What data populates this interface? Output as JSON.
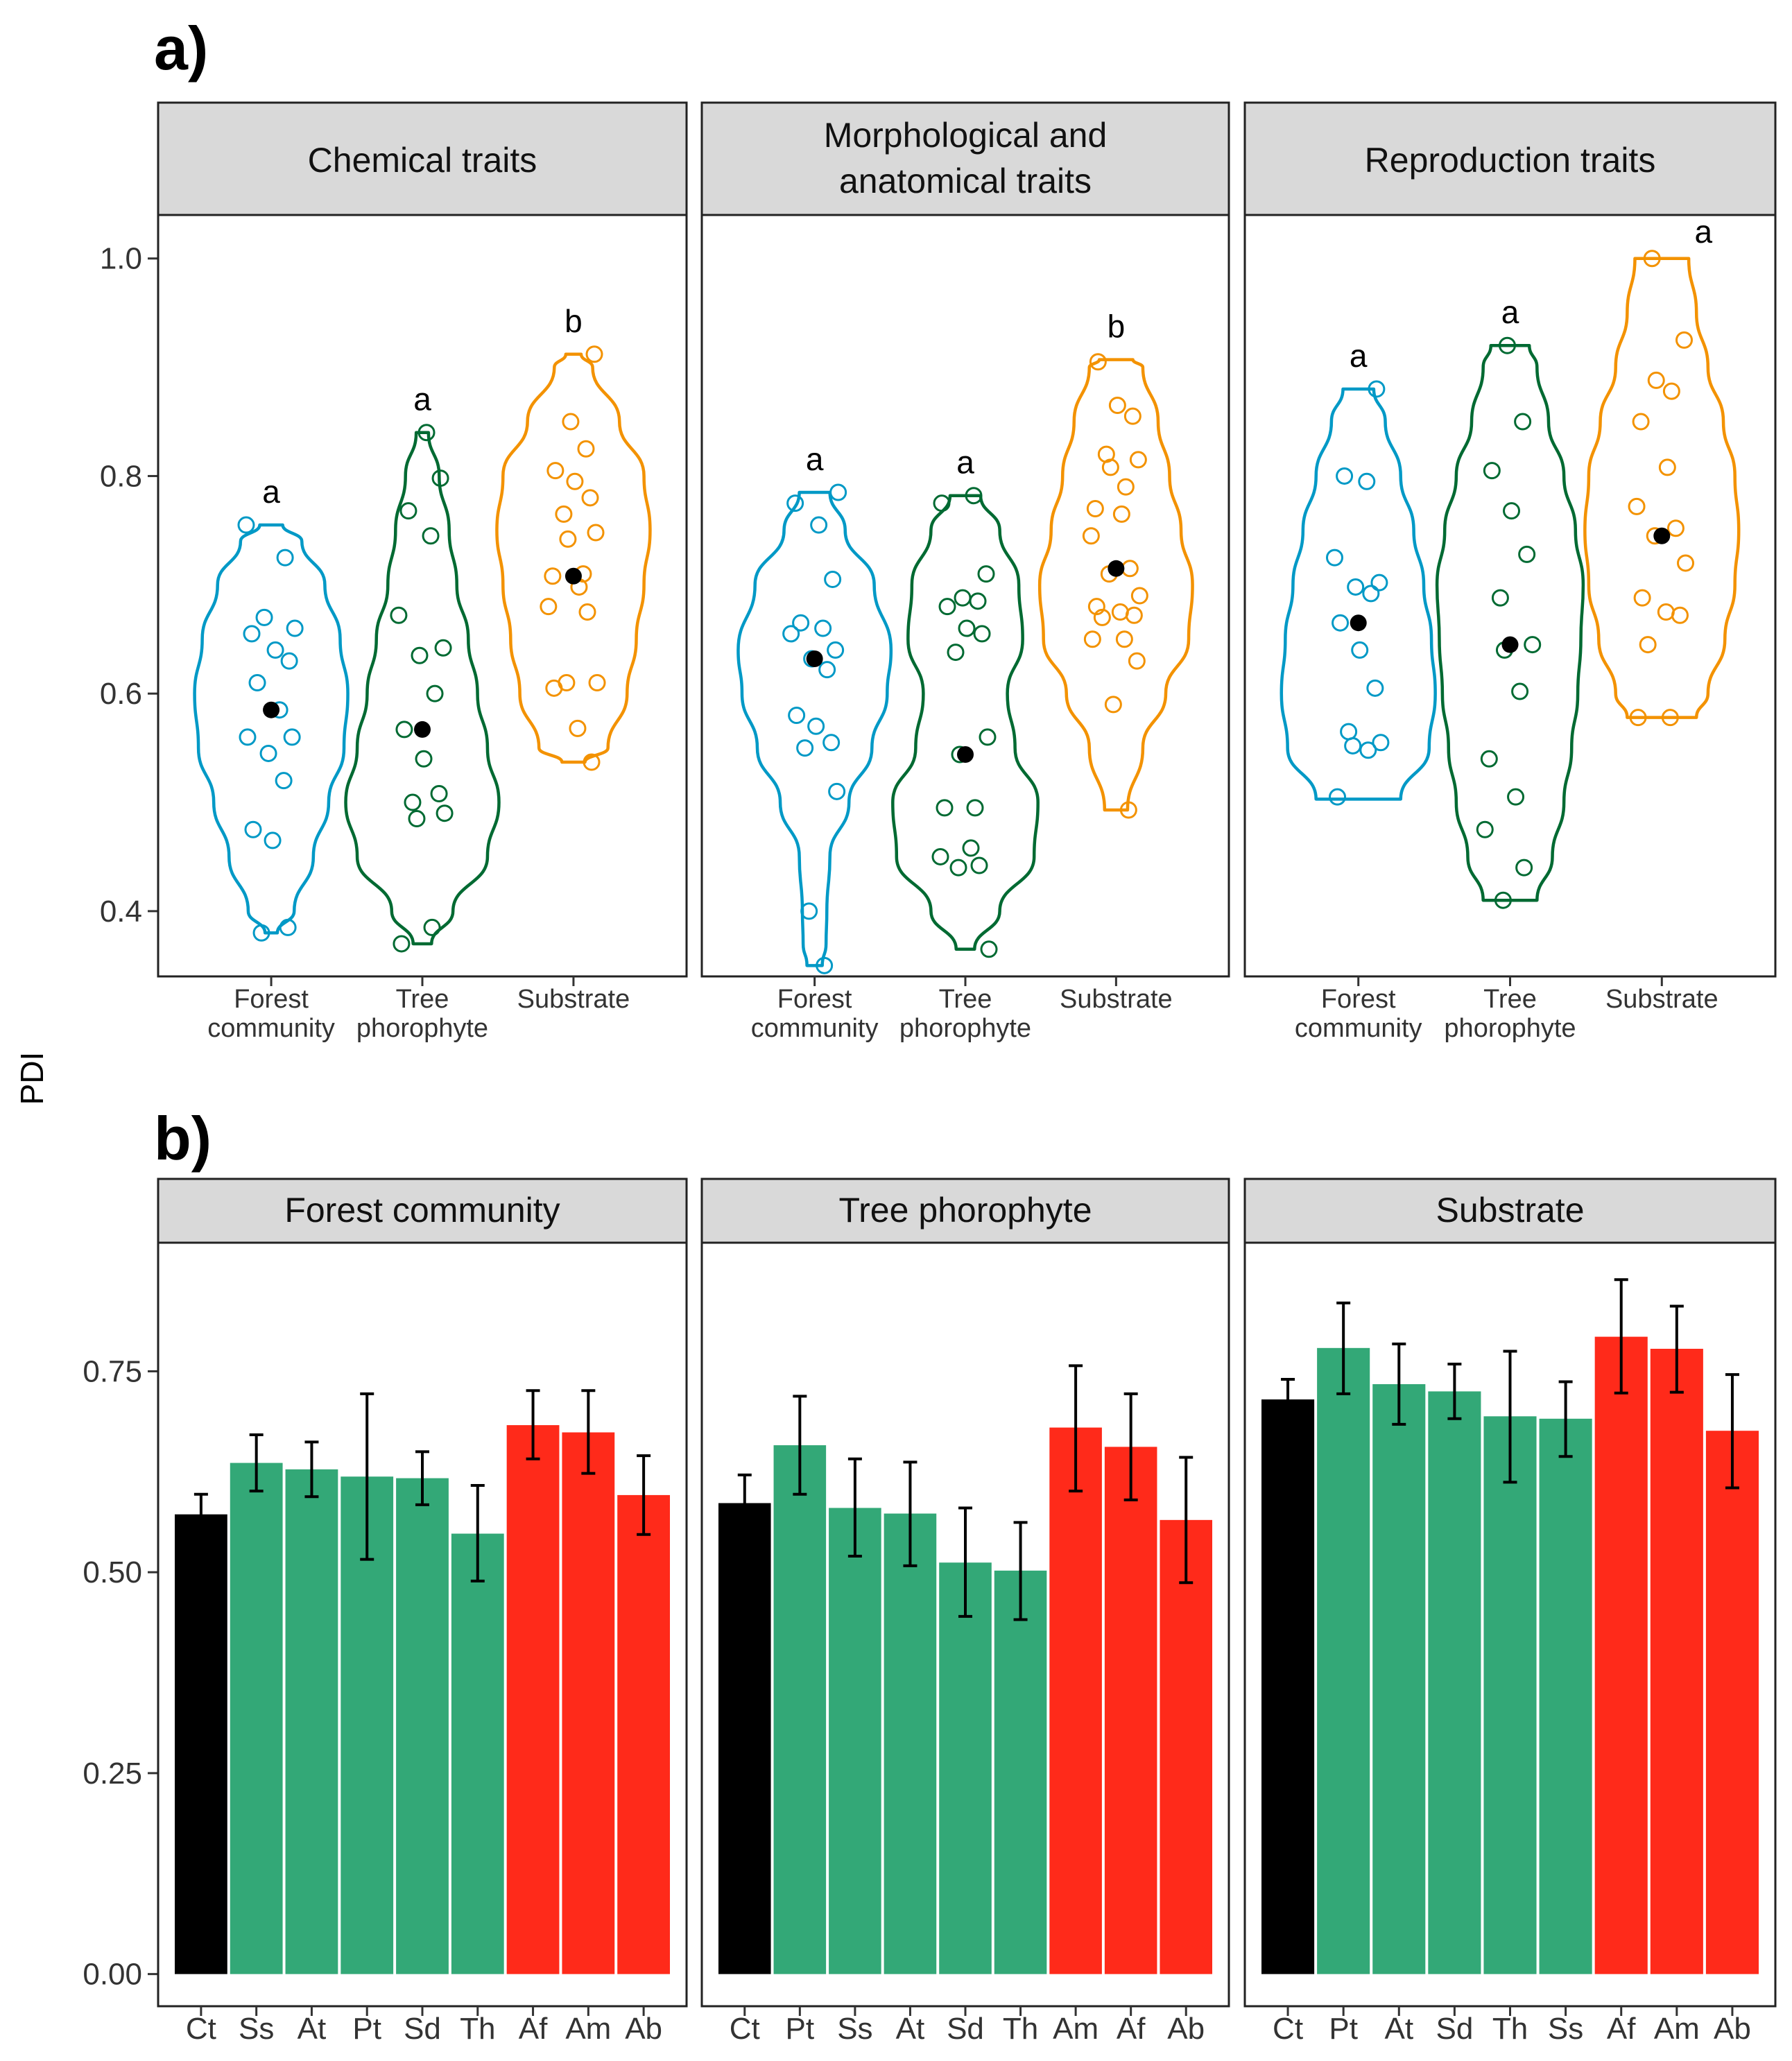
{
  "figure": {
    "ylabel": "PDI",
    "colors": {
      "forest": "#0099C6",
      "tree": "#006A32",
      "substrate": "#F39200",
      "mean_dot": "#000000",
      "strip_fill": "#D9D9D9",
      "bar_control": "#000000",
      "bar_green": "#33A877",
      "bar_red": "#FF2A1A",
      "error_bar": "#000000"
    }
  },
  "chart_data": [
    {
      "panel_label": "a)",
      "type": "violin",
      "ylim": [
        0.34,
        1.04
      ],
      "yticks": [
        0.4,
        0.6,
        0.8,
        1.0
      ],
      "ytick_labels": [
        "0.4",
        "0.6",
        "0.8",
        "1.0"
      ],
      "categories": [
        {
          "key": "forest",
          "lines": [
            "Forest",
            "community"
          ]
        },
        {
          "key": "tree",
          "lines": [
            "Tree",
            "phorophyte"
          ]
        },
        {
          "key": "substrate",
          "lines": [
            "Substrate"
          ]
        }
      ],
      "facets": [
        {
          "title_lines": [
            "Chemical traits"
          ],
          "groups": [
            {
              "key": "forest",
              "sig": "a",
              "mean": 0.585,
              "points": [
                0.755,
                0.725,
                0.67,
                0.66,
                0.655,
                0.64,
                0.63,
                0.61,
                0.585,
                0.56,
                0.56,
                0.545,
                0.52,
                0.475,
                0.465,
                0.385,
                0.38
              ],
              "violin": [
                [
                  0.38,
                  0.08
                ],
                [
                  0.4,
                  0.3
                ],
                [
                  0.45,
                  0.55
                ],
                [
                  0.5,
                  0.75
                ],
                [
                  0.55,
                  0.95
                ],
                [
                  0.6,
                  1.0
                ],
                [
                  0.65,
                  0.9
                ],
                [
                  0.7,
                  0.7
                ],
                [
                  0.74,
                  0.4
                ],
                [
                  0.755,
                  0.15
                ]
              ]
            },
            {
              "key": "tree",
              "sig": "a",
              "mean": 0.567,
              "points": [
                0.84,
                0.798,
                0.768,
                0.745,
                0.672,
                0.642,
                0.635,
                0.6,
                0.567,
                0.54,
                0.508,
                0.5,
                0.49,
                0.485,
                0.385,
                0.37
              ],
              "violin": [
                [
                  0.37,
                  0.12
                ],
                [
                  0.4,
                  0.4
                ],
                [
                  0.45,
                  0.85
                ],
                [
                  0.5,
                  1.0
                ],
                [
                  0.55,
                  0.85
                ],
                [
                  0.6,
                  0.72
                ],
                [
                  0.65,
                  0.6
                ],
                [
                  0.7,
                  0.45
                ],
                [
                  0.75,
                  0.35
                ],
                [
                  0.8,
                  0.22
                ],
                [
                  0.84,
                  0.08
                ]
              ]
            },
            {
              "key": "substrate",
              "sig": "b",
              "mean": 0.708,
              "points": [
                0.912,
                0.85,
                0.825,
                0.805,
                0.795,
                0.78,
                0.765,
                0.748,
                0.742,
                0.71,
                0.708,
                0.698,
                0.68,
                0.675,
                0.61,
                0.61,
                0.605,
                0.568,
                0.537
              ],
              "violin": [
                [
                  0.537,
                  0.15
                ],
                [
                  0.55,
                  0.45
                ],
                [
                  0.6,
                  0.7
                ],
                [
                  0.65,
                  0.82
                ],
                [
                  0.7,
                  0.92
                ],
                [
                  0.75,
                  1.0
                ],
                [
                  0.8,
                  0.92
                ],
                [
                  0.85,
                  0.6
                ],
                [
                  0.9,
                  0.25
                ],
                [
                  0.912,
                  0.1
                ]
              ]
            }
          ]
        },
        {
          "title_lines": [
            "Morphological and",
            "anatomical traits"
          ],
          "groups": [
            {
              "key": "forest",
              "sig": "a",
              "mean": 0.632,
              "points": [
                0.785,
                0.775,
                0.755,
                0.705,
                0.665,
                0.66,
                0.655,
                0.64,
                0.632,
                0.622,
                0.58,
                0.57,
                0.555,
                0.55,
                0.51,
                0.4,
                0.35
              ],
              "violin": [
                [
                  0.35,
                  0.1
                ],
                [
                  0.37,
                  0.15
                ],
                [
                  0.4,
                  0.16
                ],
                [
                  0.45,
                  0.2
                ],
                [
                  0.5,
                  0.45
                ],
                [
                  0.55,
                  0.75
                ],
                [
                  0.6,
                  0.95
                ],
                [
                  0.64,
                  1.0
                ],
                [
                  0.7,
                  0.78
                ],
                [
                  0.75,
                  0.4
                ],
                [
                  0.785,
                  0.2
                ]
              ]
            },
            {
              "key": "tree",
              "sig": "a",
              "mean": 0.544,
              "points": [
                0.782,
                0.775,
                0.71,
                0.688,
                0.685,
                0.68,
                0.66,
                0.655,
                0.638,
                0.56,
                0.544,
                0.495,
                0.495,
                0.458,
                0.45,
                0.442,
                0.44,
                0.365
              ],
              "violin": [
                [
                  0.365,
                  0.12
                ],
                [
                  0.4,
                  0.45
                ],
                [
                  0.45,
                  0.9
                ],
                [
                  0.5,
                  0.95
                ],
                [
                  0.55,
                  0.65
                ],
                [
                  0.6,
                  0.55
                ],
                [
                  0.65,
                  0.75
                ],
                [
                  0.7,
                  0.7
                ],
                [
                  0.75,
                  0.45
                ],
                [
                  0.782,
                  0.2
                ]
              ]
            },
            {
              "key": "substrate",
              "sig": "b",
              "mean": 0.715,
              "points": [
                0.905,
                0.865,
                0.855,
                0.82,
                0.815,
                0.808,
                0.79,
                0.77,
                0.765,
                0.745,
                0.715,
                0.71,
                0.69,
                0.68,
                0.675,
                0.672,
                0.67,
                0.65,
                0.65,
                0.63,
                0.59,
                0.493
              ],
              "violin": [
                [
                  0.493,
                  0.15
                ],
                [
                  0.55,
                  0.35
                ],
                [
                  0.6,
                  0.65
                ],
                [
                  0.65,
                  0.95
                ],
                [
                  0.7,
                  1.0
                ],
                [
                  0.75,
                  0.85
                ],
                [
                  0.8,
                  0.7
                ],
                [
                  0.85,
                  0.55
                ],
                [
                  0.9,
                  0.35
                ],
                [
                  0.907,
                  0.22
                ]
              ]
            }
          ]
        },
        {
          "title_lines": [
            "Reproduction traits"
          ],
          "groups": [
            {
              "key": "forest",
              "sig": "a",
              "mean": 0.665,
              "points": [
                0.88,
                0.8,
                0.795,
                0.725,
                0.702,
                0.698,
                0.692,
                0.665,
                0.64,
                0.605,
                0.565,
                0.555,
                0.552,
                0.548,
                0.505
              ],
              "violin": [
                [
                  0.503,
                  0.55
                ],
                [
                  0.55,
                  0.92
                ],
                [
                  0.6,
                  1.0
                ],
                [
                  0.65,
                  0.95
                ],
                [
                  0.7,
                  0.85
                ],
                [
                  0.75,
                  0.72
                ],
                [
                  0.8,
                  0.55
                ],
                [
                  0.85,
                  0.35
                ],
                [
                  0.88,
                  0.2
                ]
              ]
            },
            {
              "key": "tree",
              "sig": "a",
              "mean": 0.645,
              "points": [
                0.92,
                0.85,
                0.805,
                0.768,
                0.728,
                0.688,
                0.645,
                0.64,
                0.602,
                0.54,
                0.505,
                0.475,
                0.44,
                0.41
              ],
              "violin": [
                [
                  0.41,
                  0.35
                ],
                [
                  0.45,
                  0.55
                ],
                [
                  0.5,
                  0.7
                ],
                [
                  0.55,
                  0.8
                ],
                [
                  0.6,
                  0.88
                ],
                [
                  0.65,
                  0.92
                ],
                [
                  0.7,
                  0.95
                ],
                [
                  0.75,
                  0.85
                ],
                [
                  0.8,
                  0.7
                ],
                [
                  0.85,
                  0.5
                ],
                [
                  0.9,
                  0.35
                ],
                [
                  0.92,
                  0.25
                ]
              ]
            },
            {
              "key": "substrate",
              "sig": "a",
              "mean": 0.745,
              "points": [
                1.0,
                0.925,
                0.888,
                0.878,
                0.85,
                0.808,
                0.772,
                0.752,
                0.745,
                0.72,
                0.688,
                0.675,
                0.672,
                0.645,
                0.578,
                0.578
              ],
              "violin": [
                [
                  0.578,
                  0.45
                ],
                [
                  0.6,
                  0.6
                ],
                [
                  0.65,
                  0.82
                ],
                [
                  0.7,
                  0.95
                ],
                [
                  0.75,
                  1.0
                ],
                [
                  0.8,
                  0.95
                ],
                [
                  0.85,
                  0.8
                ],
                [
                  0.9,
                  0.6
                ],
                [
                  0.95,
                  0.45
                ],
                [
                  1.0,
                  0.35
                ]
              ]
            }
          ]
        }
      ]
    },
    {
      "panel_label": "b)",
      "type": "bar",
      "ylim": [
        -0.04,
        0.91
      ],
      "yticks": [
        0.0,
        0.25,
        0.5,
        0.75
      ],
      "ytick_labels": [
        "0.00",
        "0.25",
        "0.50",
        "0.75"
      ],
      "facets": [
        {
          "title": "Forest community",
          "categories": [
            "Ct",
            "Ss",
            "At",
            "Pt",
            "Sd",
            "Th",
            "Af",
            "Am",
            "Ab"
          ],
          "groups": [
            "control",
            "green",
            "green",
            "green",
            "green",
            "green",
            "red",
            "red",
            "red"
          ],
          "values": [
            0.572,
            0.636,
            0.628,
            0.619,
            0.617,
            0.548,
            0.683,
            0.674,
            0.596
          ],
          "err_low": [
            0.547,
            0.601,
            0.594,
            0.516,
            0.584,
            0.489,
            0.641,
            0.623,
            0.547
          ],
          "err_high": [
            0.597,
            0.671,
            0.662,
            0.722,
            0.65,
            0.608,
            0.726,
            0.726,
            0.645
          ]
        },
        {
          "title": "Tree phorophyte",
          "categories": [
            "Ct",
            "Pt",
            "Ss",
            "At",
            "Sd",
            "Th",
            "Am",
            "Af",
            "Ab"
          ],
          "groups": [
            "control",
            "green",
            "green",
            "green",
            "green",
            "green",
            "red",
            "red",
            "red"
          ],
          "values": [
            0.586,
            0.658,
            0.58,
            0.573,
            0.512,
            0.502,
            0.68,
            0.656,
            0.565
          ],
          "err_low": [
            0.551,
            0.597,
            0.52,
            0.508,
            0.445,
            0.441,
            0.601,
            0.59,
            0.487
          ],
          "err_high": [
            0.621,
            0.719,
            0.641,
            0.637,
            0.58,
            0.562,
            0.757,
            0.722,
            0.643
          ]
        },
        {
          "title": "Substrate",
          "categories": [
            "Ct",
            "Pt",
            "At",
            "Sd",
            "Th",
            "Ss",
            "Af",
            "Am",
            "Ab"
          ],
          "groups": [
            "control",
            "green",
            "green",
            "green",
            "green",
            "green",
            "red",
            "red",
            "red"
          ],
          "values": [
            0.715,
            0.779,
            0.734,
            0.725,
            0.694,
            0.691,
            0.793,
            0.778,
            0.676
          ],
          "err_low": [
            0.69,
            0.722,
            0.684,
            0.691,
            0.612,
            0.644,
            0.723,
            0.724,
            0.605
          ],
          "err_high": [
            0.74,
            0.835,
            0.784,
            0.759,
            0.775,
            0.737,
            0.864,
            0.831,
            0.746
          ]
        }
      ]
    }
  ]
}
